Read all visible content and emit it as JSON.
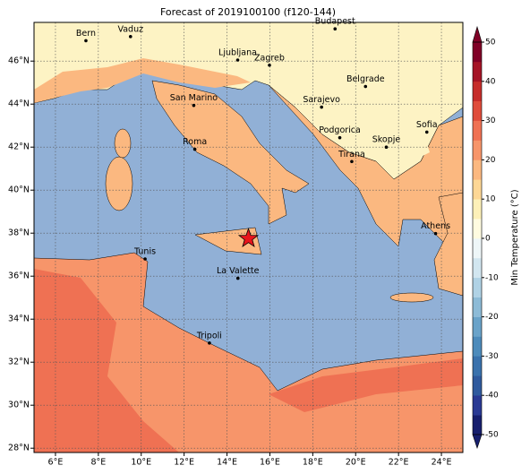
{
  "title": "Forecast of 2019100100 (f120-144)",
  "extent": {
    "lon": [
      5,
      25
    ],
    "lat": [
      27.8,
      47.8
    ]
  },
  "lon_ticks": [
    {
      "value": 6,
      "label": "6°E"
    },
    {
      "value": 8,
      "label": "8°E"
    },
    {
      "value": 10,
      "label": "10°E"
    },
    {
      "value": 12,
      "label": "12°E"
    },
    {
      "value": 14,
      "label": "14°E"
    },
    {
      "value": 16,
      "label": "16°E"
    },
    {
      "value": 18,
      "label": "18°E"
    },
    {
      "value": 20,
      "label": "20°E"
    },
    {
      "value": 22,
      "label": "22°E"
    },
    {
      "value": 24,
      "label": "24°E"
    }
  ],
  "lat_ticks": [
    {
      "value": 28,
      "label": "28°N"
    },
    {
      "value": 30,
      "label": "30°N"
    },
    {
      "value": 32,
      "label": "32°N"
    },
    {
      "value": 34,
      "label": "34°N"
    },
    {
      "value": 36,
      "label": "36°N"
    },
    {
      "value": 38,
      "label": "38°N"
    },
    {
      "value": 40,
      "label": "40°N"
    },
    {
      "value": 42,
      "label": "42°N"
    },
    {
      "value": 44,
      "label": "44°N"
    },
    {
      "value": 46,
      "label": "46°N"
    }
  ],
  "cities": [
    {
      "name": "Bern",
      "lon": 7.42,
      "lat": 46.95
    },
    {
      "name": "Vaduz",
      "lon": 9.5,
      "lat": 47.14
    },
    {
      "name": "Budapest",
      "lon": 19.04,
      "lat": 47.5
    },
    {
      "name": "Ljubljana",
      "lon": 14.5,
      "lat": 46.05
    },
    {
      "name": "Zagreb",
      "lon": 15.98,
      "lat": 45.81
    },
    {
      "name": "San Marino",
      "lon": 12.45,
      "lat": 43.94
    },
    {
      "name": "Belgrade",
      "lon": 20.46,
      "lat": 44.82
    },
    {
      "name": "Sarajevo",
      "lon": 18.41,
      "lat": 43.86
    },
    {
      "name": "Podgorica",
      "lon": 19.26,
      "lat": 42.44
    },
    {
      "name": "Sofia",
      "lon": 23.32,
      "lat": 42.7
    },
    {
      "name": "Roma",
      "lon": 12.5,
      "lat": 41.9
    },
    {
      "name": "Skopje",
      "lon": 21.43,
      "lat": 42.0
    },
    {
      "name": "Tirana",
      "lon": 19.82,
      "lat": 41.33
    },
    {
      "name": "Athens",
      "lon": 23.73,
      "lat": 37.98
    },
    {
      "name": "Tunis",
      "lon": 10.18,
      "lat": 36.8
    },
    {
      "name": "La Valette",
      "lon": 14.51,
      "lat": 35.9
    },
    {
      "name": "Tripoli",
      "lon": 13.18,
      "lat": 32.89
    }
  ],
  "marker": {
    "lon": 15.0,
    "lat": 37.75
  },
  "colorbar": {
    "label": "Min Temperature (°C)",
    "range": [
      -50,
      50
    ],
    "ticks": [
      -50,
      -40,
      -30,
      -20,
      -10,
      0,
      10,
      20,
      30,
      40,
      50
    ],
    "colors": [
      "#171f6e",
      "#2a3a94",
      "#2f5a9e",
      "#3a72ad",
      "#4d8bbb",
      "#6aa3c9",
      "#8dbbd7",
      "#b0d2e5",
      "#d2e6f0",
      "#eef6f8",
      "#fffbe0",
      "#fdf0b8",
      "#fdd795",
      "#fbb880",
      "#f7956a",
      "#ef7153",
      "#df4c3b",
      "#c62d2b",
      "#a51426",
      "#800026"
    ]
  }
}
